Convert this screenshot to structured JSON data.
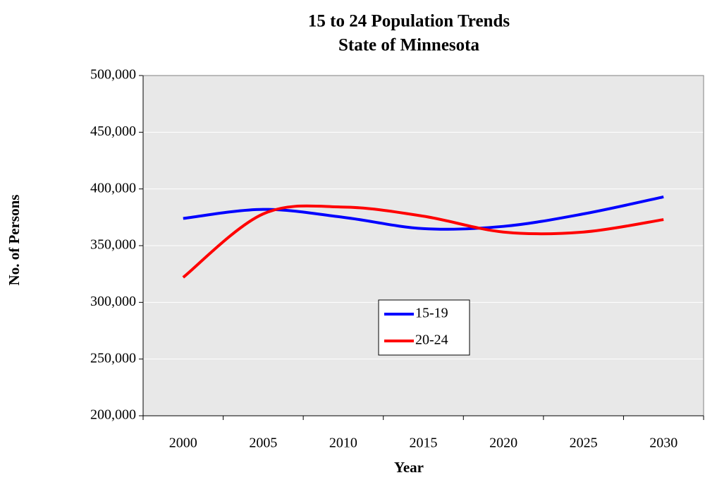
{
  "chart_data": {
    "type": "line",
    "title": "15 to 24 Population Trends",
    "subtitle": "State of Minnesota",
    "x_label": "Year",
    "y_label": "No. of Persons",
    "categories": [
      "2000",
      "2005",
      "2010",
      "2015",
      "2020",
      "2025",
      "2030"
    ],
    "series": [
      {
        "name": "15-19",
        "color": "#0000ff",
        "values": [
          374000,
          382000,
          375000,
          365000,
          367000,
          378000,
          393000
        ]
      },
      {
        "name": "20-24",
        "color": "#ff0000",
        "values": [
          322000,
          378000,
          384000,
          376000,
          362000,
          362000,
          373000
        ]
      }
    ],
    "ylim": [
      200000,
      500000
    ],
    "yticks": [
      {
        "value": 200000,
        "label": "200,000"
      },
      {
        "value": 250000,
        "label": "250,000"
      },
      {
        "value": 300000,
        "label": "300,000"
      },
      {
        "value": 350000,
        "label": "350,000"
      },
      {
        "value": 400000,
        "label": "400,000"
      },
      {
        "value": 450000,
        "label": "450,000"
      },
      {
        "value": 500000,
        "label": "500,000"
      }
    ],
    "grid": true,
    "smooth": true
  }
}
